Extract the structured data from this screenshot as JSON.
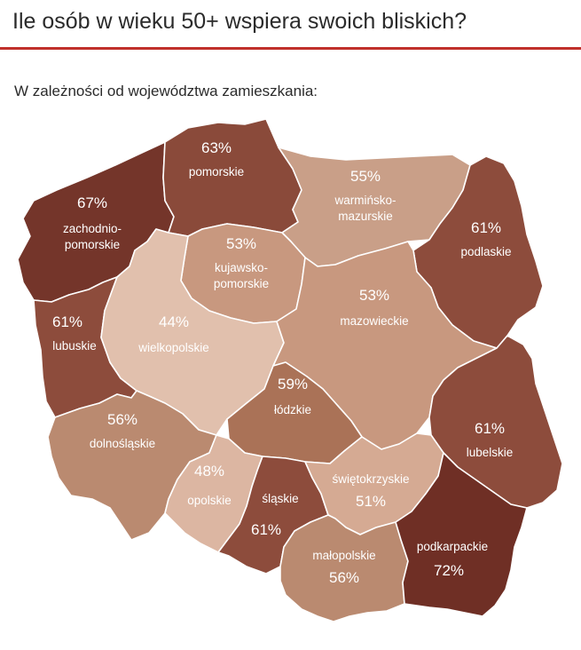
{
  "header": {
    "title": "Ile osób w wieku 50+ wspiera swoich bliskich?",
    "subtitle": "W zależności od województwa zamieszkania:"
  },
  "colors": {
    "accent_rule": "#c0302b",
    "scale": {
      "44": "#e1c0ad",
      "48": "#dcb6a2",
      "51": "#d5aa93",
      "53": "#c8987f",
      "55": "#c99f88",
      "56": "#ba8a70",
      "59": "#aa7257",
      "61": "#8d4c3c",
      "63": "#8a4a3a",
      "67": "#74352a",
      "72": "#6f2f25"
    }
  },
  "map_data": {
    "type": "choropleth",
    "regions": [
      {
        "id": "zachodniopomorskie",
        "name_lines": [
          "zachodnio-",
          "pomorskie"
        ],
        "percent_label": "67%",
        "value": 67
      },
      {
        "id": "pomorskie",
        "name_lines": [
          "pomorskie"
        ],
        "percent_label": "63%",
        "value": 63
      },
      {
        "id": "warminsko-mazurskie",
        "name_lines": [
          "warmińsko-",
          "mazurskie"
        ],
        "percent_label": "55%",
        "value": 55
      },
      {
        "id": "podlaskie",
        "name_lines": [
          "podlaskie"
        ],
        "percent_label": "61%",
        "value": 61
      },
      {
        "id": "kujawsko-pomorskie",
        "name_lines": [
          "kujawsko-",
          "pomorskie"
        ],
        "percent_label": "53%",
        "value": 53
      },
      {
        "id": "lubuskie",
        "name_lines": [
          "lubuskie"
        ],
        "percent_label": "61%",
        "value": 61
      },
      {
        "id": "wielkopolskie",
        "name_lines": [
          "wielkopolskie"
        ],
        "percent_label": "44%",
        "value": 44
      },
      {
        "id": "mazowieckie",
        "name_lines": [
          "mazowieckie"
        ],
        "percent_label": "53%",
        "value": 53
      },
      {
        "id": "lodzkie",
        "name_lines": [
          "łódzkie"
        ],
        "percent_label": "59%",
        "value": 59
      },
      {
        "id": "lubelskie",
        "name_lines": [
          "lubelskie"
        ],
        "percent_label": "61%",
        "value": 61
      },
      {
        "id": "dolnoslaskie",
        "name_lines": [
          "dolnośląskie"
        ],
        "percent_label": "56%",
        "value": 56
      },
      {
        "id": "opolskie",
        "name_lines": [
          "opolskie"
        ],
        "percent_label": "48%",
        "value": 48
      },
      {
        "id": "slaskie",
        "name_lines": [
          "śląskie"
        ],
        "percent_label": "61%",
        "value": 61
      },
      {
        "id": "swietokrzyskie",
        "name_lines": [
          "świętokrzyskie"
        ],
        "percent_label": "51%",
        "value": 51
      },
      {
        "id": "malopolskie",
        "name_lines": [
          "małopolskie"
        ],
        "percent_label": "56%",
        "value": 56
      },
      {
        "id": "podkarpackie",
        "name_lines": [
          "podkarpackie"
        ],
        "percent_label": "72%",
        "value": 72
      }
    ]
  }
}
